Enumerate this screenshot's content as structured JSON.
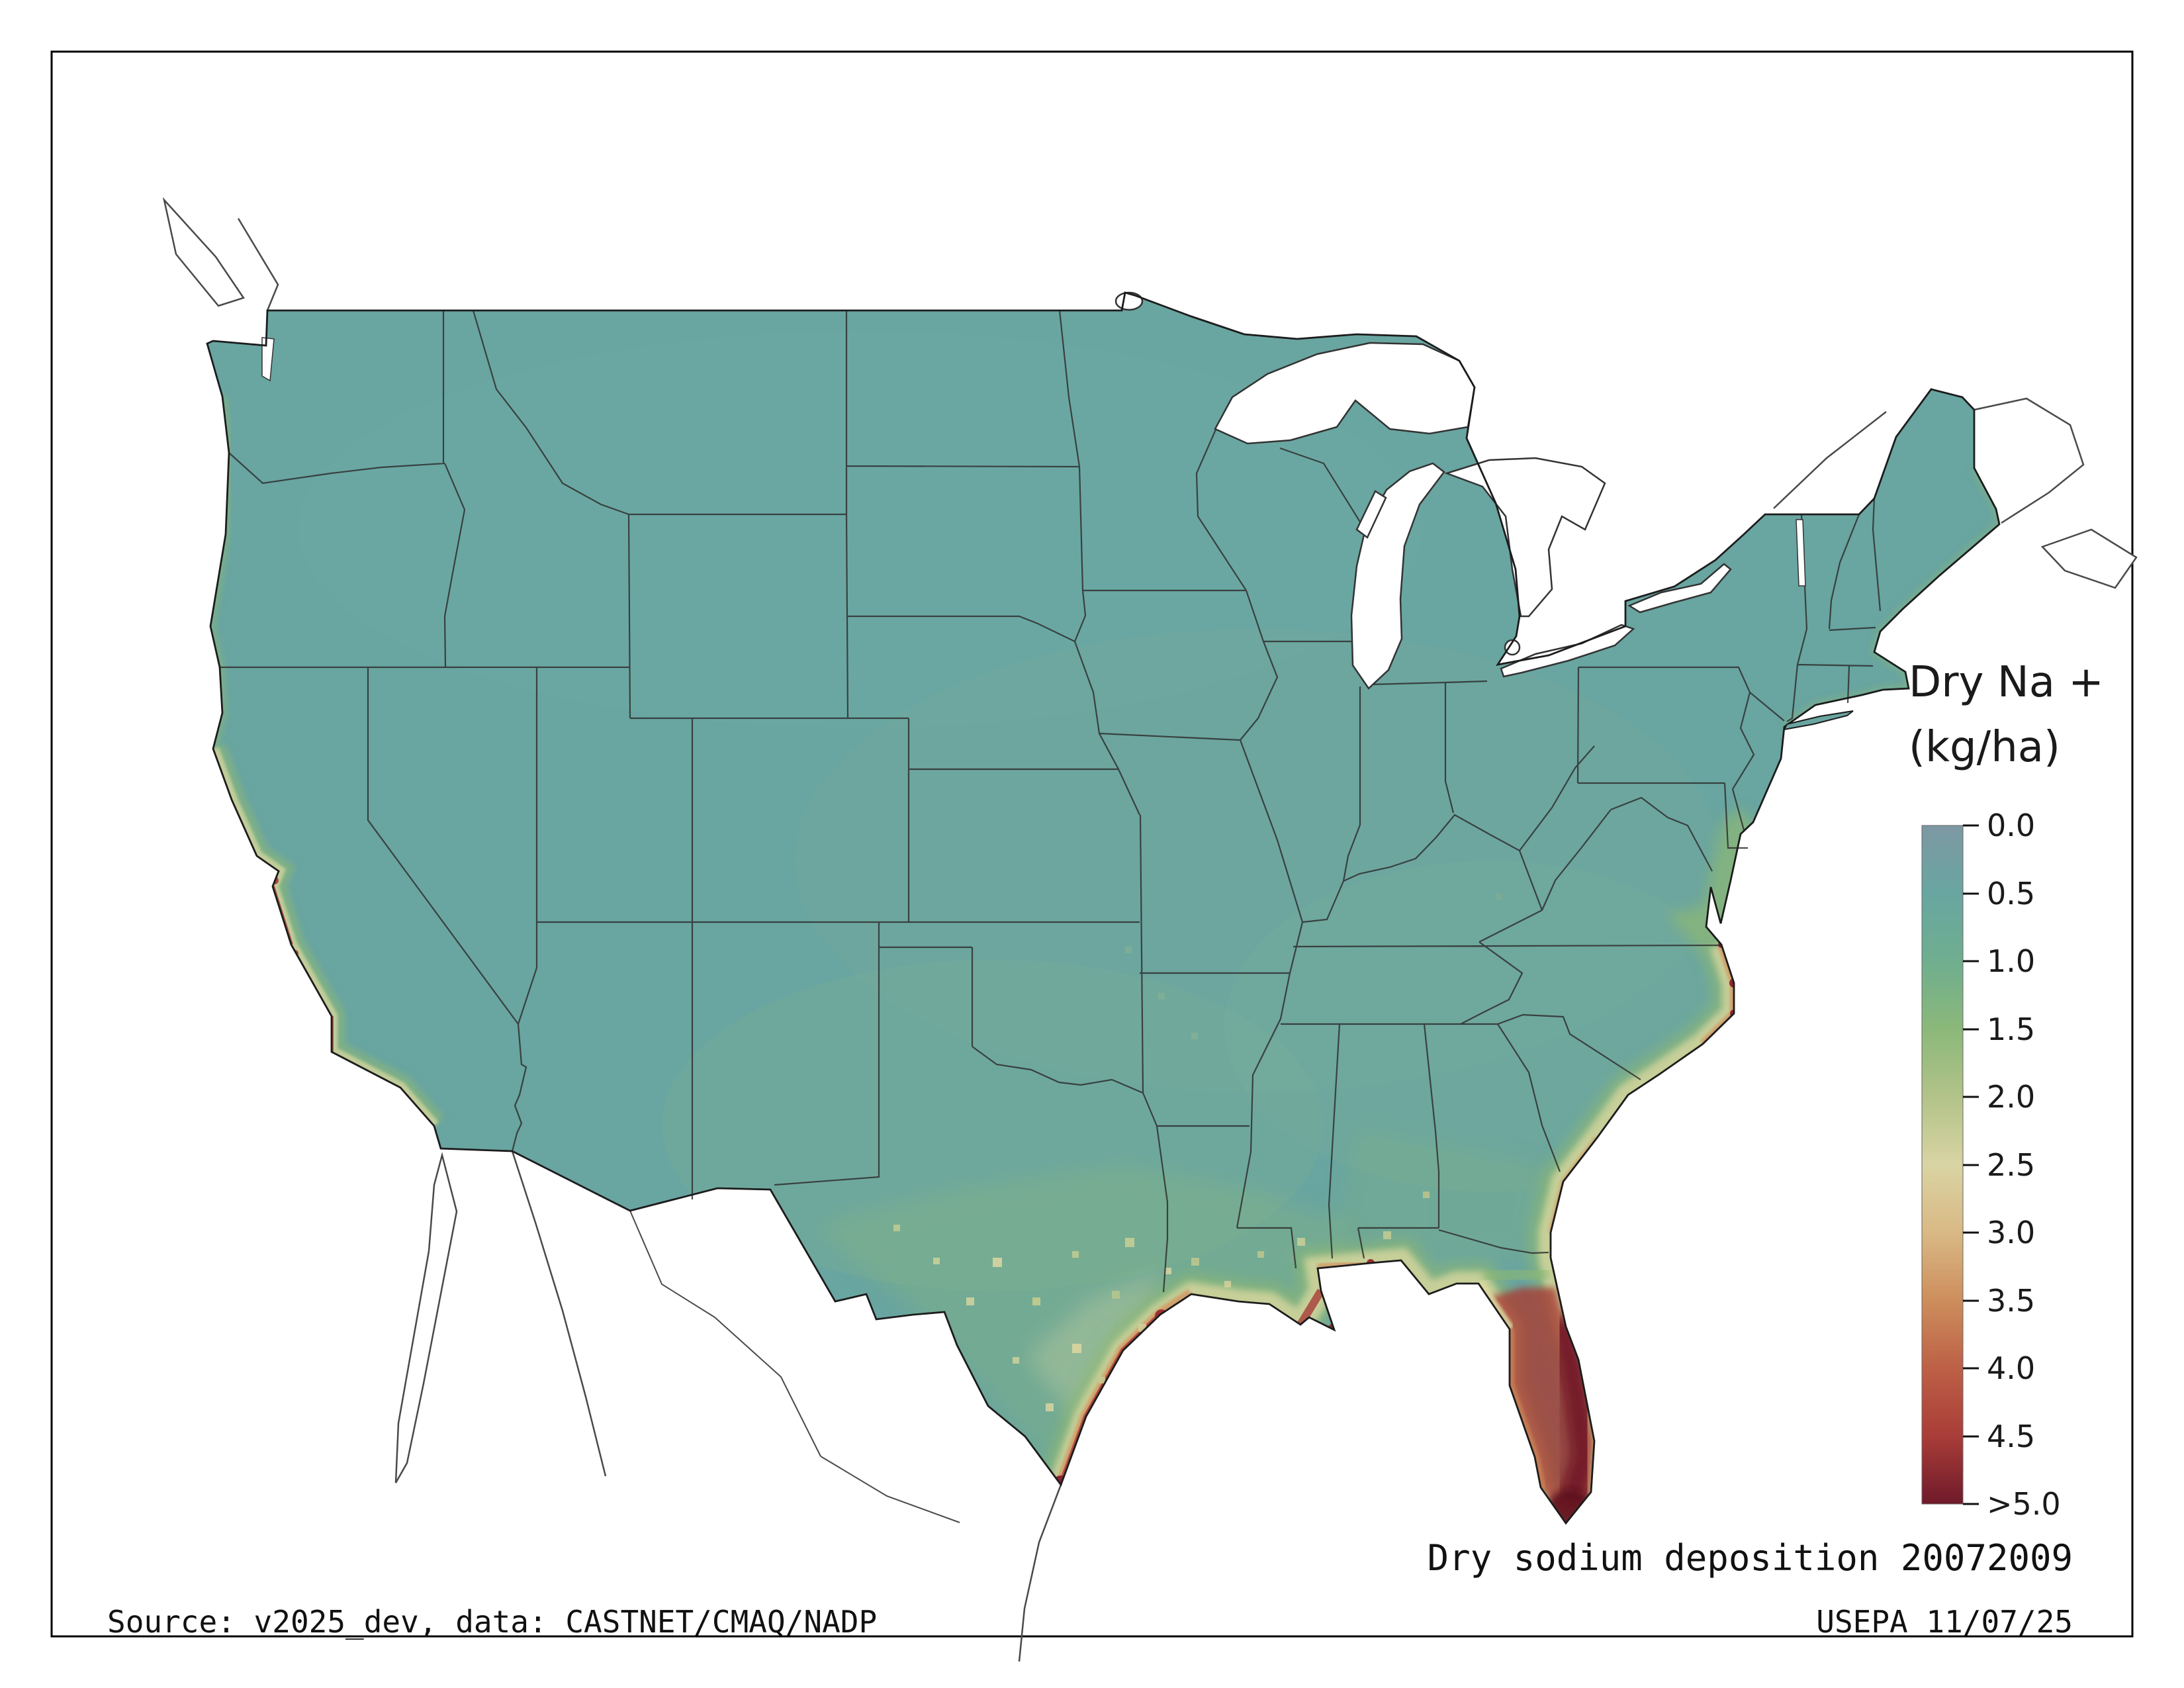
{
  "figure": {
    "caption": "Dry sodium deposition 20072009",
    "source": "Source: v2025_dev, data: CASTNET/CMAQ/NADP",
    "credit": "USEPA 11/07/25"
  },
  "legend": {
    "title_line1": "Dry Na +",
    "title_line2": "(kg/ha)",
    "ticks": [
      {
        "label": "0.0",
        "color": "#7d98a3"
      },
      {
        "label": "0.5",
        "color": "#69a6a1"
      },
      {
        "label": "1.0",
        "color": "#6fae8f"
      },
      {
        "label": "1.5",
        "color": "#8bb87a"
      },
      {
        "label": "2.0",
        "color": "#b2c389"
      },
      {
        "label": "2.5",
        "color": "#d9d4a3"
      },
      {
        "label": "3.0",
        "color": "#d9b985"
      },
      {
        "label": "3.5",
        "color": "#cd8e5c"
      },
      {
        "label": "4.0",
        "color": "#bd6046"
      },
      {
        "label": "4.5",
        "color": "#a93d38"
      },
      {
        "label": ">5.0",
        "color": "#6f1a2a"
      }
    ]
  },
  "colors": {
    "background": "#ffffff",
    "frame": "#000000",
    "land_base": "#69a5a1",
    "water": "#ffffff",
    "neighbor_line": "#4a4a4a",
    "state_line": "#2f2f2f",
    "us_outline": "#1c1c1c",
    "coast_green": "#8db873",
    "coast_yellow": "#ded9a2",
    "coast_orange": "#d2935f",
    "coast_red": "#a83c36",
    "coast_maroon": "#701525",
    "text": "#111111"
  }
}
